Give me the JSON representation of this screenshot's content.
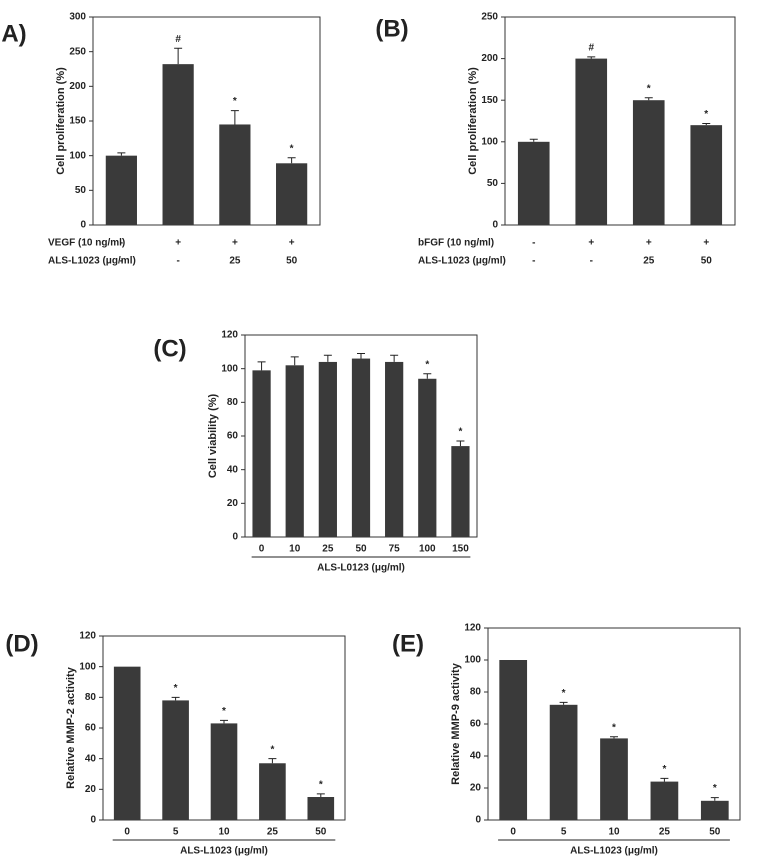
{
  "chart_data": [
    {
      "type": "bar",
      "panel_label": "A)",
      "y_label": "Cell proliferation (%)",
      "ylim": [
        0,
        300
      ],
      "yticks": [
        0,
        50,
        100,
        150,
        200,
        250,
        300
      ],
      "values": [
        100,
        232,
        145,
        89
      ],
      "errors": [
        4,
        23,
        20,
        8
      ],
      "markers": [
        null,
        "#",
        "*",
        "*"
      ],
      "color": "#3a3a3a",
      "condition_rows": [
        {
          "label": "VEGF (10 ng/ml)",
          "values": [
            "-",
            "+",
            "+",
            "+"
          ]
        },
        {
          "label": "ALS-L1023 (μg/ml)",
          "values": [
            "-",
            "-",
            "25",
            "50"
          ]
        }
      ]
    },
    {
      "type": "bar",
      "panel_label": "(B)",
      "y_label": "Cell proliferation (%)",
      "ylim": [
        0,
        250
      ],
      "yticks": [
        0,
        50,
        100,
        150,
        200,
        250
      ],
      "values": [
        100,
        200,
        150,
        120
      ],
      "errors": [
        3,
        2,
        3,
        2
      ],
      "markers": [
        null,
        "#",
        "*",
        "*"
      ],
      "color": "#3a3a3a",
      "condition_rows": [
        {
          "label": "bFGF (10 ng/ml)",
          "values": [
            "-",
            "+",
            "+",
            "+"
          ]
        },
        {
          "label": "ALS-L1023 (μg/ml)",
          "values": [
            "-",
            "-",
            "25",
            "50"
          ]
        }
      ]
    },
    {
      "type": "bar",
      "panel_label": "(C)",
      "y_label": "Cell viability (%)",
      "x_label": "ALS-L0123 (μg/ml)",
      "ylim": [
        0,
        120
      ],
      "yticks": [
        0,
        20,
        40,
        60,
        80,
        100,
        120
      ],
      "categories": [
        "0",
        "10",
        "25",
        "50",
        "75",
        "100",
        "150"
      ],
      "values": [
        99,
        102,
        104,
        106,
        104,
        94,
        54
      ],
      "errors": [
        5,
        5,
        4,
        3,
        4,
        3,
        3
      ],
      "markers": [
        null,
        null,
        null,
        null,
        null,
        "*",
        "*"
      ],
      "color": "#3a3a3a"
    },
    {
      "type": "bar",
      "panel_label": "(D)",
      "y_label": "Relative MMP-2 activity",
      "x_label": "ALS-L1023 (μg/ml)",
      "ylim": [
        0,
        120
      ],
      "yticks": [
        0,
        20,
        40,
        60,
        80,
        100,
        120
      ],
      "categories": [
        "0",
        "5",
        "10",
        "25",
        "50"
      ],
      "values": [
        100,
        78,
        63,
        37,
        15
      ],
      "errors": [
        null,
        2,
        2,
        3,
        2
      ],
      "markers": [
        null,
        "*",
        "*",
        "*",
        "*"
      ],
      "color": "#3a3a3a"
    },
    {
      "type": "bar",
      "panel_label": "(E)",
      "y_label": "Relative MMP-9 activity",
      "x_label": "ALS-L1023 (μg/ml)",
      "ylim": [
        0,
        120
      ],
      "yticks": [
        0,
        20,
        40,
        60,
        80,
        100,
        120
      ],
      "categories": [
        "0",
        "5",
        "10",
        "25",
        "50"
      ],
      "values": [
        100,
        72,
        51,
        24,
        12
      ],
      "errors": [
        null,
        1.5,
        1,
        2,
        2
      ],
      "markers": [
        null,
        "*",
        "*",
        "*",
        "*"
      ],
      "color": "#3a3a3a"
    }
  ]
}
